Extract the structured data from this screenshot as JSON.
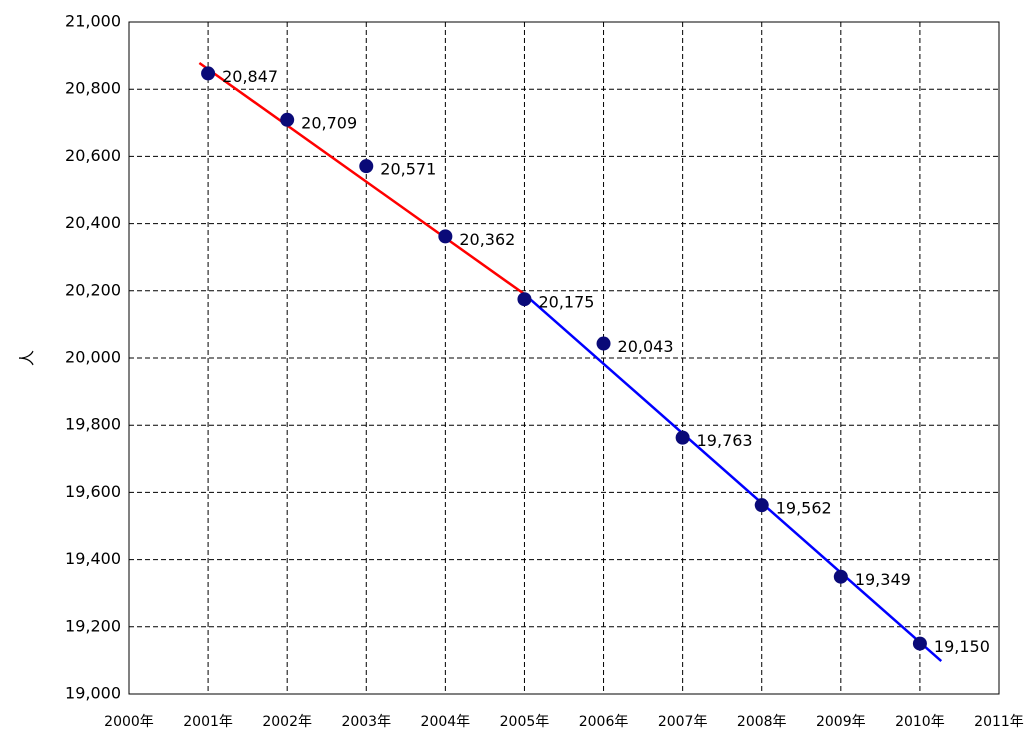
{
  "chart_data": {
    "type": "scatter",
    "y_label": "人",
    "x": [
      2001,
      2002,
      2003,
      2004,
      2005,
      2006,
      2007,
      2008,
      2009,
      2010
    ],
    "values": [
      20847,
      20709,
      20571,
      20362,
      20175,
      20043,
      19763,
      19562,
      19349,
      19150
    ],
    "value_labels": [
      "20,847",
      "20,709",
      "20,571",
      "20,362",
      "20,175",
      "20,043",
      "19,763",
      "19,562",
      "19,349",
      "19,150"
    ],
    "color": "#0a0a78",
    "trendlines": [
      {
        "color": "#ff0000",
        "x": [
          2000.89,
          2005
        ],
        "values": [
          20878,
          20190
        ]
      },
      {
        "color": "#0000ff",
        "x": [
          2005,
          2010.27
        ],
        "values": [
          20190,
          19098
        ]
      }
    ],
    "xlim": [
      2000,
      2011
    ],
    "xticks": [
      {
        "value": 2000,
        "label": "2000年"
      },
      {
        "value": 2001,
        "label": "2001年"
      },
      {
        "value": 2002,
        "label": "2002年"
      },
      {
        "value": 2003,
        "label": "2003年"
      },
      {
        "value": 2004,
        "label": "2004年"
      },
      {
        "value": 2005,
        "label": "2005年"
      },
      {
        "value": 2006,
        "label": "2006年"
      },
      {
        "value": 2007,
        "label": "2007年"
      },
      {
        "value": 2008,
        "label": "2008年"
      },
      {
        "value": 2009,
        "label": "2009年"
      },
      {
        "value": 2010,
        "label": "2010年"
      },
      {
        "value": 2011,
        "label": "2011年"
      }
    ],
    "ylim": [
      19000,
      21000
    ],
    "yticks": [
      {
        "value": 19000,
        "label": "19,000"
      },
      {
        "value": 19200,
        "label": "19,200"
      },
      {
        "value": 19400,
        "label": "19,400"
      },
      {
        "value": 19600,
        "label": "19,600"
      },
      {
        "value": 19800,
        "label": "19,800"
      },
      {
        "value": 20000,
        "label": "20,000"
      },
      {
        "value": 20200,
        "label": "20,200"
      },
      {
        "value": 20400,
        "label": "20,400"
      },
      {
        "value": 20600,
        "label": "20,600"
      },
      {
        "value": 20800,
        "label": "20,800"
      },
      {
        "value": 21000,
        "label": "21,000"
      }
    ],
    "grid": true
  }
}
